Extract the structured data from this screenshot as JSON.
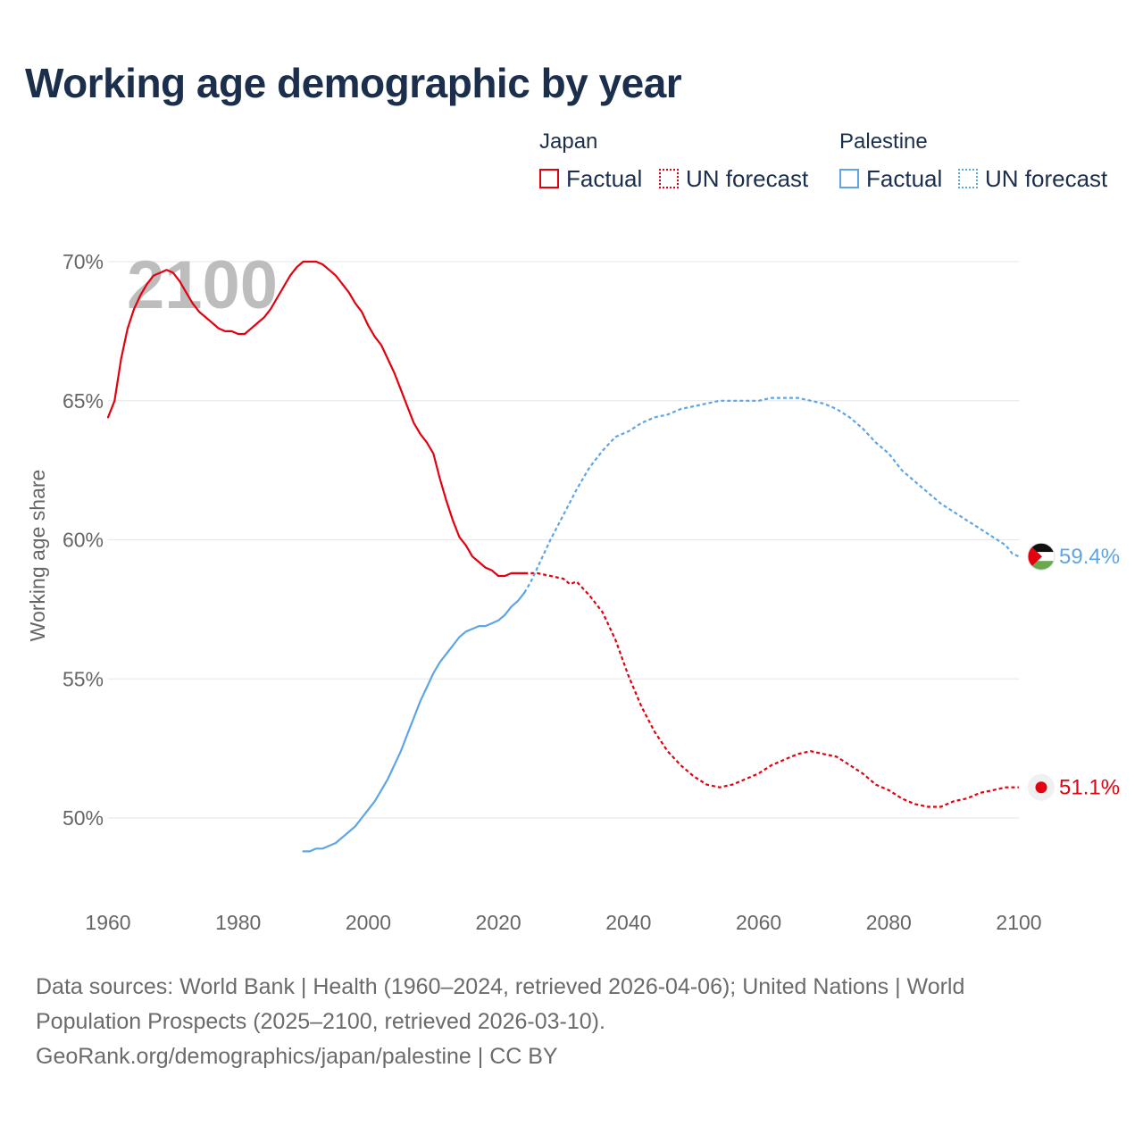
{
  "title": "Working age demographic by year",
  "legend": {
    "groups": [
      {
        "name": "Japan",
        "factual_label": "Factual",
        "forecast_label": "UN forecast",
        "color": "#e3000f"
      },
      {
        "name": "Palestine",
        "factual_label": "Factual",
        "forecast_label": "UN forecast",
        "color": "#5da5e6"
      }
    ]
  },
  "sources": {
    "line1": "Data sources: World Bank | Health (1960–2024, retrieved 2026-04-06); United Nations | World",
    "line2": "Population Prospects (2025–2100, retrieved 2026-03-10).",
    "line3": "GeoRank.org/demographics/japan/palestine | CC BY"
  },
  "chart_data": {
    "type": "line",
    "title": "Working age demographic by year",
    "current_year_label": "2100",
    "xlabel": "",
    "ylabel": "Working age share",
    "xlim": [
      1960,
      2100
    ],
    "ylim": [
      47,
      71
    ],
    "x_ticks": [
      1960,
      1980,
      2000,
      2020,
      2040,
      2060,
      2080,
      2100
    ],
    "x_tick_labels": [
      "1960",
      "1980",
      "2000",
      "2020",
      "2040",
      "2060",
      "2080",
      "2100"
    ],
    "y_ticks": [
      50,
      55,
      60,
      65,
      70
    ],
    "y_tick_labels": [
      "50%",
      "55%",
      "60%",
      "65%",
      "70%"
    ],
    "grid": true,
    "series": [
      {
        "name": "Japan",
        "part": "Factual",
        "color": "#e3000f",
        "style": "solid",
        "x": [
          1960,
          1961,
          1962,
          1963,
          1964,
          1965,
          1966,
          1967,
          1968,
          1969,
          1970,
          1971,
          1972,
          1973,
          1974,
          1975,
          1976,
          1977,
          1978,
          1979,
          1980,
          1981,
          1982,
          1983,
          1984,
          1985,
          1986,
          1987,
          1988,
          1989,
          1990,
          1991,
          1992,
          1993,
          1994,
          1995,
          1996,
          1997,
          1998,
          1999,
          2000,
          2001,
          2002,
          2003,
          2004,
          2005,
          2006,
          2007,
          2008,
          2009,
          2010,
          2011,
          2012,
          2013,
          2014,
          2015,
          2016,
          2017,
          2018,
          2019,
          2020,
          2021,
          2022,
          2023,
          2024
        ],
        "y": [
          64.4,
          65.0,
          66.5,
          67.6,
          68.3,
          68.8,
          69.2,
          69.5,
          69.6,
          69.7,
          69.6,
          69.3,
          68.9,
          68.5,
          68.2,
          68.0,
          67.8,
          67.6,
          67.5,
          67.5,
          67.4,
          67.4,
          67.6,
          67.8,
          68.0,
          68.3,
          68.7,
          69.1,
          69.5,
          69.8,
          70.0,
          70.0,
          70.0,
          69.9,
          69.7,
          69.5,
          69.2,
          68.9,
          68.5,
          68.2,
          67.7,
          67.3,
          67.0,
          66.5,
          66.0,
          65.4,
          64.8,
          64.2,
          63.8,
          63.5,
          63.1,
          62.2,
          61.4,
          60.7,
          60.1,
          59.8,
          59.4,
          59.2,
          59.0,
          58.9,
          58.7,
          58.7,
          58.8,
          58.8,
          58.8
        ]
      },
      {
        "name": "Japan",
        "part": "UN forecast",
        "color": "#e3000f",
        "style": "dotted",
        "x": [
          2024,
          2026,
          2028,
          2030,
          2031,
          2032,
          2034,
          2036,
          2038,
          2040,
          2042,
          2044,
          2046,
          2048,
          2050,
          2052,
          2054,
          2056,
          2058,
          2060,
          2062,
          2064,
          2066,
          2068,
          2070,
          2072,
          2074,
          2076,
          2078,
          2080,
          2082,
          2084,
          2086,
          2088,
          2090,
          2092,
          2094,
          2096,
          2098,
          2100
        ],
        "y": [
          58.8,
          58.8,
          58.7,
          58.6,
          58.4,
          58.5,
          58.0,
          57.4,
          56.4,
          55.1,
          54.0,
          53.1,
          52.4,
          51.9,
          51.5,
          51.2,
          51.1,
          51.2,
          51.4,
          51.6,
          51.9,
          52.1,
          52.3,
          52.4,
          52.3,
          52.2,
          51.9,
          51.6,
          51.2,
          51.0,
          50.7,
          50.5,
          50.4,
          50.4,
          50.6,
          50.7,
          50.9,
          51.0,
          51.1,
          51.1
        ]
      },
      {
        "name": "Palestine",
        "part": "Factual",
        "color": "#5da5e6",
        "style": "solid",
        "x": [
          1990,
          1991,
          1992,
          1993,
          1994,
          1995,
          1996,
          1997,
          1998,
          1999,
          2000,
          2001,
          2002,
          2003,
          2004,
          2005,
          2006,
          2007,
          2008,
          2009,
          2010,
          2011,
          2012,
          2013,
          2014,
          2015,
          2016,
          2017,
          2018,
          2019,
          2020,
          2021,
          2022,
          2023,
          2024
        ],
        "y": [
          48.8,
          48.8,
          48.9,
          48.9,
          49.0,
          49.1,
          49.3,
          49.5,
          49.7,
          50.0,
          50.3,
          50.6,
          51.0,
          51.4,
          51.9,
          52.4,
          53.0,
          53.6,
          54.2,
          54.7,
          55.2,
          55.6,
          55.9,
          56.2,
          56.5,
          56.7,
          56.8,
          56.9,
          56.9,
          57.0,
          57.1,
          57.3,
          57.6,
          57.8,
          58.1
        ]
      },
      {
        "name": "Palestine",
        "part": "UN forecast",
        "color": "#5da5e6",
        "style": "dotted",
        "x": [
          2024,
          2025,
          2026,
          2028,
          2030,
          2032,
          2034,
          2036,
          2038,
          2040,
          2042,
          2044,
          2046,
          2048,
          2050,
          2052,
          2054,
          2056,
          2058,
          2060,
          2062,
          2064,
          2066,
          2068,
          2070,
          2072,
          2074,
          2076,
          2078,
          2080,
          2082,
          2084,
          2086,
          2088,
          2090,
          2092,
          2094,
          2096,
          2098,
          2099,
          2100
        ],
        "y": [
          58.1,
          58.5,
          59.0,
          60.0,
          60.9,
          61.8,
          62.6,
          63.2,
          63.7,
          63.9,
          64.2,
          64.4,
          64.5,
          64.7,
          64.8,
          64.9,
          65.0,
          65.0,
          65.0,
          65.0,
          65.1,
          65.1,
          65.1,
          65.0,
          64.9,
          64.7,
          64.4,
          64.0,
          63.5,
          63.1,
          62.5,
          62.1,
          61.7,
          61.3,
          61.0,
          60.7,
          60.4,
          60.1,
          59.8,
          59.5,
          59.4
        ]
      }
    ],
    "end_labels": [
      {
        "name": "Palestine",
        "text": "59.4%",
        "value": 59.4,
        "color": "#5da5e6",
        "flag": "palestine-flag"
      },
      {
        "name": "Japan",
        "text": "51.1%",
        "value": 51.1,
        "color": "#e3000f",
        "flag": "japan-flag"
      }
    ]
  }
}
